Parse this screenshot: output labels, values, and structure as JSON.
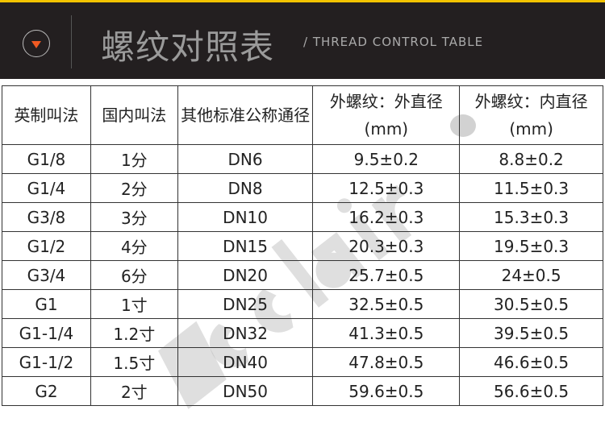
{
  "banner": {
    "title": "螺纹对照表",
    "subtitle": "/ THREAD CONTROL TABLE",
    "accent": "#f05a22",
    "top_line": "#f2c300"
  },
  "table": {
    "headers": [
      "英制叫法",
      "国内叫法",
      "其他标准公称通径",
      "外螺纹：外直径(mm)",
      "外螺纹：内直径(mm)"
    ],
    "rows": [
      [
        "G1/8",
        "1分",
        "DN6",
        "9.5±0.2",
        "8.8±0.2"
      ],
      [
        "G1/4",
        "2分",
        "DN8",
        "12.5±0.3",
        "11.5±0.3"
      ],
      [
        "G3/8",
        "3分",
        "DN10",
        "16.2±0.3",
        "15.3±0.3"
      ],
      [
        "G1/2",
        "4分",
        "DN15",
        "20.3±0.3",
        "19.5±0.3"
      ],
      [
        "G3/4",
        "6分",
        "DN20",
        "25.7±0.5",
        "24±0.5"
      ],
      [
        "G1",
        "1寸",
        "DN25",
        "32.5±0.5",
        "30.5±0.5"
      ],
      [
        "G1-1/4",
        "1.2寸",
        "DN32",
        "41.3±0.5",
        "39.5±0.5"
      ],
      [
        "G1-1/2",
        "1.5寸",
        "DN40",
        "47.8±0.5",
        "46.6±0.5"
      ],
      [
        "G2",
        "2寸",
        "DN50",
        "59.6±0.5",
        "56.6±0.5"
      ]
    ]
  },
  "watermark": "ecclair"
}
